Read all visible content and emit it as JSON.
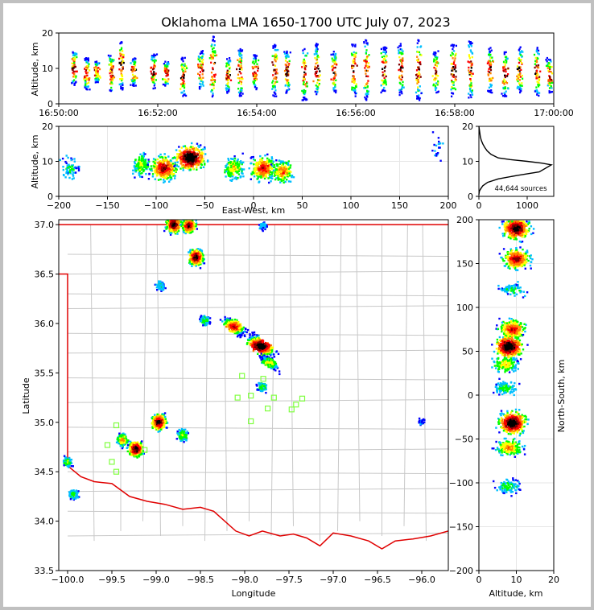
{
  "chart_data": [
    {
      "type": "heatmap",
      "panel": "altitude-time",
      "title": "Oklahoma LMA 1650-1700 UTC July 07, 2023",
      "ylabel": "Altitude, km",
      "ylim": [
        0,
        20
      ],
      "yticks": [
        0,
        10,
        20
      ],
      "xticks": [
        "16:50:00",
        "16:52:00",
        "16:54:00",
        "16:56:00",
        "16:58:00",
        "17:00:00"
      ],
      "colormap": [
        "#0000ff",
        "#00bfff",
        "#00ff00",
        "#ffff00",
        "#ff8000",
        "#ff0000",
        "#800000",
        "#000000"
      ],
      "columns": [
        {
          "t": 0.3,
          "alt": [
            5,
            15
          ]
        },
        {
          "t": 0.55,
          "alt": [
            4,
            13
          ]
        },
        {
          "t": 0.75,
          "alt": [
            6,
            12
          ]
        },
        {
          "t": 1.05,
          "alt": [
            3,
            14
          ]
        },
        {
          "t": 1.25,
          "alt": [
            4,
            18
          ]
        },
        {
          "t": 1.5,
          "alt": [
            5,
            13
          ]
        },
        {
          "t": 1.9,
          "alt": [
            4,
            14
          ]
        },
        {
          "t": 2.15,
          "alt": [
            5,
            12
          ]
        },
        {
          "t": 2.5,
          "alt": [
            2,
            13
          ]
        },
        {
          "t": 2.85,
          "alt": [
            4,
            15
          ]
        },
        {
          "t": 3.1,
          "alt": [
            1,
            19
          ]
        },
        {
          "t": 3.4,
          "alt": [
            3,
            13
          ]
        },
        {
          "t": 3.65,
          "alt": [
            2,
            16
          ]
        },
        {
          "t": 3.95,
          "alt": [
            4,
            14
          ]
        },
        {
          "t": 4.35,
          "alt": [
            2,
            17
          ]
        },
        {
          "t": 4.6,
          "alt": [
            3,
            15
          ]
        },
        {
          "t": 4.95,
          "alt": [
            1,
            16
          ]
        },
        {
          "t": 5.2,
          "alt": [
            2,
            17
          ]
        },
        {
          "t": 5.55,
          "alt": [
            3,
            15
          ]
        },
        {
          "t": 5.95,
          "alt": [
            2,
            17
          ]
        },
        {
          "t": 6.2,
          "alt": [
            1,
            18
          ]
        },
        {
          "t": 6.55,
          "alt": [
            3,
            16
          ]
        },
        {
          "t": 6.9,
          "alt": [
            2,
            17
          ]
        },
        {
          "t": 7.25,
          "alt": [
            1,
            18
          ]
        },
        {
          "t": 7.6,
          "alt": [
            3,
            15
          ]
        },
        {
          "t": 7.95,
          "alt": [
            2,
            17
          ]
        },
        {
          "t": 8.3,
          "alt": [
            1,
            18
          ]
        },
        {
          "t": 8.7,
          "alt": [
            3,
            16
          ]
        },
        {
          "t": 9.0,
          "alt": [
            2,
            15
          ]
        },
        {
          "t": 9.3,
          "alt": [
            3,
            16
          ]
        },
        {
          "t": 9.65,
          "alt": [
            2,
            16
          ]
        },
        {
          "t": 9.9,
          "alt": [
            3,
            13
          ]
        }
      ]
    },
    {
      "type": "heatmap",
      "panel": "altitude-eastwest",
      "xlabel": "East-West, km",
      "ylabel": "Altitude, km",
      "xlim": [
        -200,
        200
      ],
      "ylim": [
        0,
        20
      ],
      "xticks": [
        -200,
        -150,
        -100,
        -50,
        0,
        50,
        100,
        150,
        200
      ],
      "yticks": [
        0,
        10,
        20
      ],
      "cells": [
        {
          "x": -188,
          "alt": 8,
          "n": 200
        },
        {
          "x": -115,
          "alt": 9,
          "n": 400
        },
        {
          "x": -92,
          "alt": 8,
          "n": 900
        },
        {
          "x": -65,
          "alt": 11,
          "n": 1200
        },
        {
          "x": -20,
          "alt": 8,
          "n": 500
        },
        {
          "x": 10,
          "alt": 8,
          "n": 800
        },
        {
          "x": 30,
          "alt": 7,
          "n": 600
        },
        {
          "x": 190,
          "alt": 14,
          "n": 60
        }
      ]
    },
    {
      "type": "line",
      "panel": "altitude-histogram",
      "xticks": [
        0,
        1000
      ],
      "yticks": [
        0,
        10,
        20
      ],
      "xlim": [
        0,
        1550
      ],
      "ylim": [
        0,
        20
      ],
      "annotation": "44,644 sources",
      "x": [
        0,
        5,
        10,
        20,
        30,
        50,
        80,
        120,
        170,
        250,
        400,
        650,
        1000,
        1300,
        1500,
        1250,
        800,
        400,
        180,
        80,
        30,
        10,
        0
      ],
      "y": [
        20,
        19.5,
        19,
        18,
        17,
        16,
        15,
        14,
        13,
        12,
        11,
        10.5,
        10,
        9.5,
        9,
        7,
        6,
        5,
        4,
        3,
        2,
        1.5,
        0.5
      ]
    },
    {
      "type": "scatter",
      "panel": "plan-view",
      "xlabel": "Longitude",
      "ylabel": "Latitude",
      "xlim": [
        -100.1,
        -95.7
      ],
      "ylim": [
        33.5,
        37.05
      ],
      "xticks": [
        -100.0,
        -99.5,
        -99.0,
        -98.5,
        -98.0,
        -97.5,
        -97.0,
        -96.5,
        -96.0
      ],
      "yticks": [
        33.5,
        34.0,
        34.5,
        35.0,
        35.5,
        36.0,
        36.5,
        37.0
      ],
      "stations": [
        [
          -99.45,
          34.97
        ],
        [
          -99.55,
          34.77
        ],
        [
          -99.5,
          34.6
        ],
        [
          -99.45,
          34.5
        ],
        [
          -99.13,
          34.72
        ],
        [
          -98.03,
          35.47
        ],
        [
          -98.08,
          35.25
        ],
        [
          -97.93,
          35.27
        ],
        [
          -97.79,
          35.44
        ],
        [
          -97.74,
          35.14
        ],
        [
          -97.67,
          35.25
        ],
        [
          -97.47,
          35.13
        ],
        [
          -97.42,
          35.18
        ],
        [
          -97.35,
          35.24
        ],
        [
          -97.93,
          35.01
        ]
      ],
      "storms": [
        {
          "lon": -98.8,
          "lat": 37.0,
          "n": 900
        },
        {
          "lon": -98.63,
          "lat": 36.99,
          "n": 800
        },
        {
          "lon": -98.55,
          "lat": 36.67,
          "n": 900
        },
        {
          "lon": -98.95,
          "lat": 36.38,
          "n": 200
        },
        {
          "lon": -98.45,
          "lat": 36.03,
          "n": 300
        },
        {
          "lon": -98.12,
          "lat": 35.97,
          "n": 700
        },
        {
          "lon": -97.82,
          "lat": 35.77,
          "n": 1000
        },
        {
          "lon": -97.72,
          "lat": 35.6,
          "n": 400
        },
        {
          "lon": -97.8,
          "lat": 35.36,
          "n": 300
        },
        {
          "lon": -98.97,
          "lat": 35.0,
          "n": 900
        },
        {
          "lon": -98.7,
          "lat": 34.87,
          "n": 400
        },
        {
          "lon": -99.23,
          "lat": 34.73,
          "n": 900
        },
        {
          "lon": -99.38,
          "lat": 34.82,
          "n": 500
        },
        {
          "lon": -100.0,
          "lat": 34.6,
          "n": 300
        },
        {
          "lon": -99.93,
          "lat": 34.27,
          "n": 300
        },
        {
          "lon": -97.79,
          "lat": 36.99,
          "n": 150
        },
        {
          "lon": -96.0,
          "lat": 35.0,
          "n": 60
        }
      ]
    },
    {
      "type": "heatmap",
      "panel": "northsouth-altitude",
      "xlabel": "Altitude, km",
      "ylabel": "North-South, km",
      "xlim": [
        0,
        20
      ],
      "ylim": [
        -200,
        200
      ],
      "xticks": [
        0,
        10,
        20
      ],
      "yticks": [
        -200,
        -150,
        -100,
        -50,
        0,
        50,
        100,
        150,
        200
      ],
      "cells": [
        {
          "alt": 10,
          "ns": 190,
          "n": 1100
        },
        {
          "alt": 10,
          "ns": 155,
          "n": 900
        },
        {
          "alt": 9,
          "ns": 120,
          "n": 250
        },
        {
          "alt": 9,
          "ns": 75,
          "n": 800
        },
        {
          "alt": 8,
          "ns": 55,
          "n": 1200
        },
        {
          "alt": 7,
          "ns": 35,
          "n": 500
        },
        {
          "alt": 7,
          "ns": 8,
          "n": 300
        },
        {
          "alt": 9,
          "ns": -32,
          "n": 1200
        },
        {
          "alt": 8,
          "ns": -60,
          "n": 600
        },
        {
          "alt": 8,
          "ns": -105,
          "n": 300
        }
      ]
    }
  ]
}
